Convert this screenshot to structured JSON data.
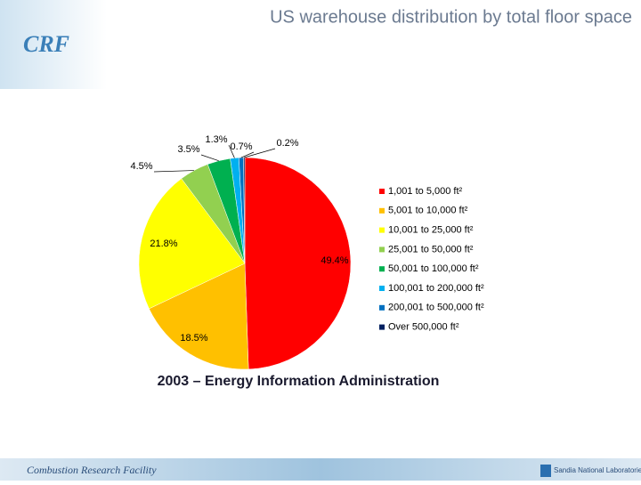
{
  "logo": "CRF",
  "footer": {
    "left": "Combustion Research Facility",
    "right": "Sandia National Laboratories"
  },
  "chart_data": {
    "type": "pie",
    "title": "US warehouse distribution by total floor space",
    "subtitle": "2003 – Energy Information Administration",
    "categories": [
      "1,001 to 5,000 ft²",
      "5,001 to 10,000 ft²",
      "10,001 to 25,000 ft²",
      "25,001 to 50,000 ft²",
      "50,001 to 100,000 ft²",
      "100,001 to 200,000 ft²",
      "200,001 to 500,000 ft²",
      "Over 500,000 ft²"
    ],
    "values": [
      49.4,
      18.5,
      21.8,
      4.5,
      3.5,
      1.3,
      0.7,
      0.2
    ],
    "value_labels": [
      "49.4%",
      "18.5%",
      "21.8%",
      "4.5%",
      "3.5%",
      "1.3%",
      "0.7%",
      "0.2%"
    ],
    "colors": [
      "#ff0000",
      "#ffc000",
      "#ffff00",
      "#92d050",
      "#00b050",
      "#00b0f0",
      "#0070c0",
      "#002060"
    ],
    "legend": "right"
  }
}
